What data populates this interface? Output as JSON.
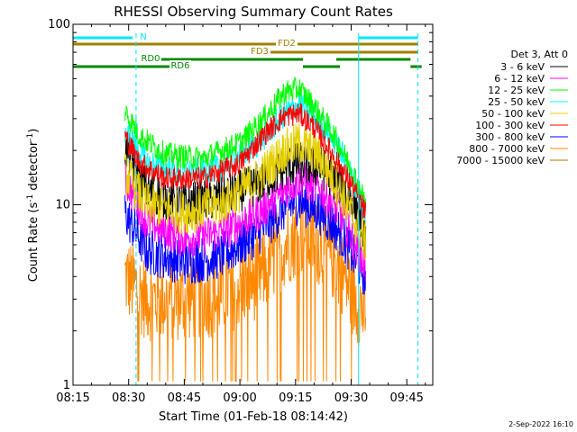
{
  "chart_data": {
    "type": "line",
    "title": "RHESSI Observing Summary Count Rates",
    "xlabel": "Start Time (01-Feb-18 08:14:42)",
    "ylabel_main": "Count Rate (s",
    "ylabel_sup1": "-1",
    "ylabel_mid": " detector",
    "ylabel_sup2": "-1",
    "ylabel_end": ")",
    "footer": "2-Sep-2022 16:10",
    "x_axis": {
      "min": "08:15",
      "max": "09:52",
      "ticks": [
        "08:15",
        "08:30",
        "08:45",
        "09:00",
        "09:15",
        "09:30",
        "09:45"
      ]
    },
    "y_axis": {
      "scale": "log",
      "min": 1,
      "max": 100,
      "ticks": [
        "1",
        "10",
        "100"
      ]
    },
    "grid": false,
    "legend": {
      "position": "right",
      "header": "Det 3, Att 0",
      "entries": [
        {
          "label": "3 - 6 keV",
          "color": "#000000"
        },
        {
          "label": "6 - 12 keV",
          "color": "#ff00ff"
        },
        {
          "label": "12 - 25 keV",
          "color": "#00ff00"
        },
        {
          "label": "25 - 50 keV",
          "color": "#00ffff"
        },
        {
          "label": "50 - 100 keV",
          "color": "#e6d000"
        },
        {
          "label": "100 - 300 keV",
          "color": "#ff0000"
        },
        {
          "label": "300 - 800 keV",
          "color": "#0000ff"
        },
        {
          "label": "800 - 7000 keV",
          "color": "#ff8800"
        },
        {
          "label": "7000 - 15000 keV",
          "color": "#aa7700"
        }
      ]
    },
    "flag_bars": [
      {
        "label": "N",
        "color": "#00e5ff",
        "segments": [
          [
            "08:15",
            "08:32"
          ],
          [
            "09:32",
            "09:48"
          ]
        ]
      },
      {
        "label": "FD2",
        "color": "#a08000",
        "segments": [
          [
            "08:15",
            "09:48"
          ]
        ]
      },
      {
        "label": "FD3",
        "color": "#a08000",
        "segments": [
          [
            "09:07",
            "09:48"
          ]
        ]
      },
      {
        "label": "RD0",
        "color": "#008800",
        "segments": [
          [
            "08:38",
            "09:17"
          ],
          [
            "09:26",
            "09:46"
          ]
        ]
      },
      {
        "label": "RD6",
        "color": "#008800",
        "segments": [
          [
            "08:15",
            "08:45"
          ],
          [
            "09:17",
            "09:27"
          ],
          [
            "09:46",
            "09:49"
          ]
        ]
      }
    ],
    "markers": [
      {
        "time": "08:32",
        "style": "dashed",
        "color": "#00e5ff"
      },
      {
        "time": "09:32",
        "style": "solid",
        "color": "#00e5ff"
      },
      {
        "time": "09:48",
        "style": "dashed",
        "color": "#00e5ff"
      }
    ],
    "series": [
      {
        "name": "3 - 6 keV",
        "color": "#000000",
        "t": [
          "08:29",
          "08:35",
          "08:45",
          "08:55",
          "09:05",
          "09:12",
          "09:16",
          "09:22",
          "09:27",
          "09:31",
          "09:34"
        ],
        "values": [
          21,
          12,
          10,
          11,
          13,
          16,
          17,
          16,
          13,
          10,
          7
        ]
      },
      {
        "name": "6 - 12 keV",
        "color": "#ff00ff",
        "t": [
          "08:29",
          "08:35",
          "08:45",
          "08:55",
          "09:05",
          "09:12",
          "09:16",
          "09:22",
          "09:27",
          "09:31",
          "09:34"
        ],
        "values": [
          14,
          8,
          6.5,
          7,
          9,
          12,
          14,
          12,
          9,
          6,
          4.5
        ]
      },
      {
        "name": "12 - 25 keV",
        "color": "#00ff00",
        "t": [
          "08:29",
          "08:33",
          "08:40",
          "08:50",
          "09:00",
          "09:07",
          "09:12",
          "09:16",
          "09:20",
          "09:25",
          "09:30",
          "09:34"
        ],
        "values": [
          33,
          24,
          19,
          18,
          22,
          31,
          42,
          44,
          35,
          25,
          16,
          10
        ]
      },
      {
        "name": "25 - 50 keV",
        "color": "#00ffff",
        "t": [
          "08:29",
          "08:35",
          "08:45",
          "08:55",
          "09:05",
          "09:12",
          "09:16",
          "09:22",
          "09:27",
          "09:31",
          "09:34"
        ],
        "values": [
          26,
          17,
          15,
          16,
          22,
          32,
          36,
          28,
          20,
          13,
          9
        ]
      },
      {
        "name": "50 - 100 keV",
        "color": "#e6d000",
        "t": [
          "08:29",
          "08:35",
          "08:45",
          "08:55",
          "09:05",
          "09:12",
          "09:16",
          "09:22",
          "09:27",
          "09:31",
          "09:34"
        ],
        "values": [
          15,
          10,
          9,
          10,
          14,
          20,
          22,
          18,
          12,
          8,
          6
        ]
      },
      {
        "name": "100 - 300 keV",
        "color": "#ff0000",
        "t": [
          "08:29",
          "08:33",
          "08:40",
          "08:50",
          "09:00",
          "09:07",
          "09:12",
          "09:16",
          "09:20",
          "09:25",
          "09:30",
          "09:34"
        ],
        "values": [
          24,
          17,
          14,
          14,
          17,
          25,
          31,
          32,
          27,
          19,
          13,
          9
        ]
      },
      {
        "name": "300 - 800 keV",
        "color": "#0000ff",
        "t": [
          "08:29",
          "08:35",
          "08:45",
          "08:55",
          "09:05",
          "09:12",
          "09:16",
          "09:22",
          "09:27",
          "09:31",
          "09:34"
        ],
        "values": [
          9,
          5.5,
          4.8,
          5.2,
          7,
          9.5,
          10.5,
          9,
          7,
          5,
          4
        ]
      },
      {
        "name": "800 - 7000 keV",
        "color": "#ff8800",
        "t": [
          "08:29",
          "08:35",
          "08:45",
          "08:55",
          "09:05",
          "09:12",
          "09:16",
          "09:22",
          "09:27",
          "09:31",
          "09:34"
        ],
        "values": [
          4,
          3,
          3,
          3.2,
          4,
          6,
          7,
          6,
          4.5,
          3,
          2.5
        ]
      }
    ]
  }
}
